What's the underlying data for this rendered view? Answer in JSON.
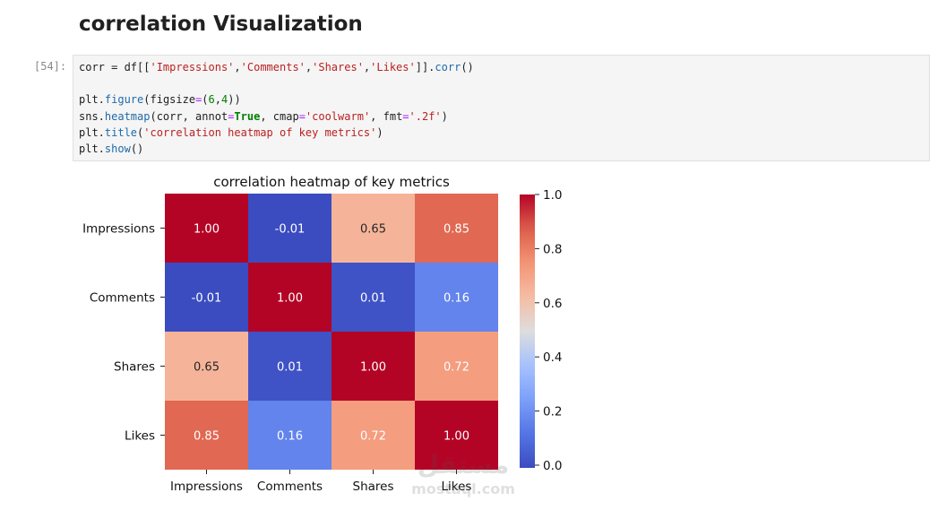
{
  "notebook": {
    "heading": "correlation Visualization",
    "cell_prompt": "[54]:",
    "code_lines": [
      [
        {
          "t": "corr = df[["
        },
        {
          "t": "'Impressions'",
          "c": "s"
        },
        {
          "t": ","
        },
        {
          "t": "'Comments'",
          "c": "s"
        },
        {
          "t": ","
        },
        {
          "t": "'Shares'",
          "c": "s"
        },
        {
          "t": ","
        },
        {
          "t": "'Likes'",
          "c": "s"
        },
        {
          "t": "]]."
        },
        {
          "t": "corr",
          "c": "fn"
        },
        {
          "t": "()"
        }
      ],
      [],
      [
        {
          "t": "plt."
        },
        {
          "t": "figure",
          "c": "fn"
        },
        {
          "t": "(figsize"
        },
        {
          "t": "=",
          "c": "op"
        },
        {
          "t": "("
        },
        {
          "t": "6",
          "c": "num"
        },
        {
          "t": ","
        },
        {
          "t": "4",
          "c": "num"
        },
        {
          "t": "))"
        }
      ],
      [
        {
          "t": "sns."
        },
        {
          "t": "heatmap",
          "c": "fn"
        },
        {
          "t": "(corr, annot"
        },
        {
          "t": "=",
          "c": "op"
        },
        {
          "t": "True",
          "c": "kw"
        },
        {
          "t": ", cmap"
        },
        {
          "t": "=",
          "c": "op"
        },
        {
          "t": "'coolwarm'",
          "c": "s"
        },
        {
          "t": ", fmt"
        },
        {
          "t": "=",
          "c": "op"
        },
        {
          "t": "'.2f'",
          "c": "s"
        },
        {
          "t": ")"
        }
      ],
      [
        {
          "t": "plt."
        },
        {
          "t": "title",
          "c": "fn"
        },
        {
          "t": "("
        },
        {
          "t": "'correlation heatmap of key metrics'",
          "c": "s"
        },
        {
          "t": ")"
        }
      ],
      [
        {
          "t": "plt."
        },
        {
          "t": "show",
          "c": "fn"
        },
        {
          "t": "()"
        }
      ]
    ]
  },
  "chart_data": {
    "type": "heatmap",
    "title": "correlation heatmap of key metrics",
    "rows": [
      "Impressions",
      "Comments",
      "Shares",
      "Likes"
    ],
    "cols": [
      "Impressions",
      "Comments",
      "Shares",
      "Likes"
    ],
    "values": [
      [
        1.0,
        -0.01,
        0.65,
        0.85
      ],
      [
        -0.01,
        1.0,
        0.01,
        0.16
      ],
      [
        0.65,
        0.01,
        1.0,
        0.72
      ],
      [
        0.85,
        0.16,
        0.72,
        1.0
      ]
    ],
    "colorbar_ticks": [
      "0.0",
      "0.2",
      "0.4",
      "0.6",
      "0.8",
      "1.0"
    ],
    "colorbar_range": [
      -0.01,
      1.0
    ],
    "colormap": "coolwarm"
  },
  "watermark": {
    "text": "mostaql.com",
    "arabic_text": "مستقل"
  }
}
